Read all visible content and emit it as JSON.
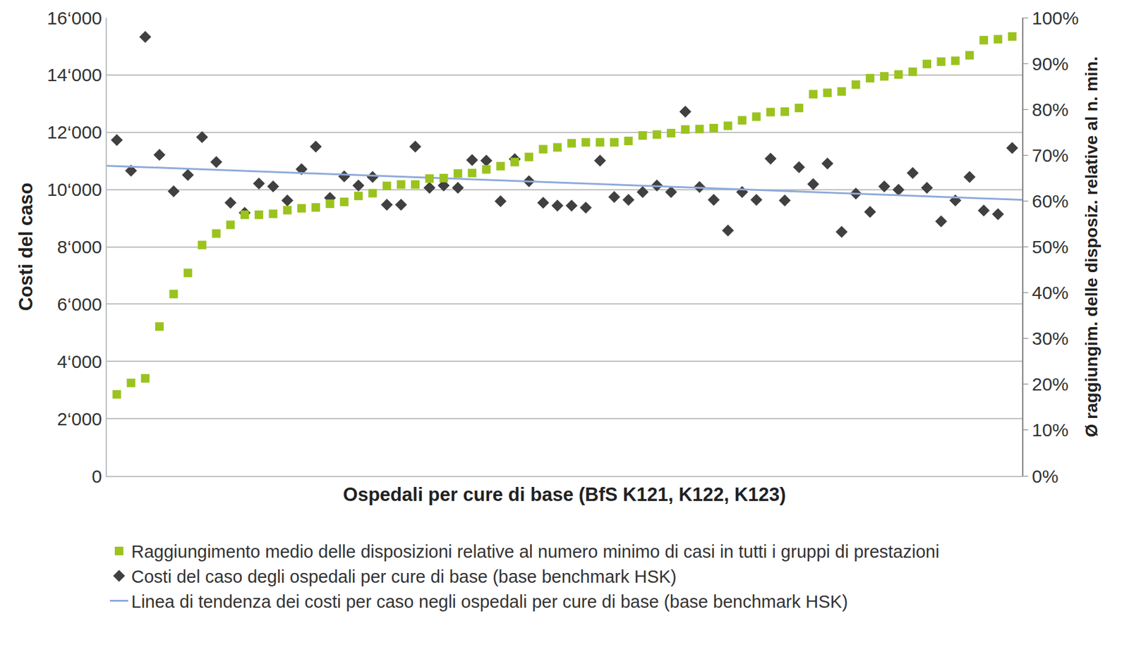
{
  "chart_data": {
    "type": "scatter",
    "x_label": "Ospedali per cure di base (BfS K121, K122, K123)",
    "y_label": "Costi del caso",
    "y2_label": "Ø raggiungim. delle disposiz. relative al n. min.",
    "x": [
      1,
      2,
      3,
      4,
      5,
      6,
      7,
      8,
      9,
      10,
      11,
      12,
      13,
      14,
      15,
      16,
      17,
      18,
      19,
      20,
      21,
      22,
      23,
      24,
      25,
      26,
      27,
      28,
      29,
      30,
      31,
      32,
      33,
      34,
      35,
      36,
      37,
      38,
      39,
      40,
      41,
      42,
      43,
      44,
      45,
      46,
      47,
      48,
      49,
      50,
      51,
      52,
      53,
      54,
      55,
      56,
      57,
      58,
      59,
      60,
      61,
      62,
      63,
      64
    ],
    "xlim": [
      0.3,
      64.7
    ],
    "xticks": [],
    "ylim": [
      0,
      16000
    ],
    "yticks": [
      0,
      {
        "value": 2000,
        "label": "2‘000"
      },
      {
        "value": 4000,
        "label": "4‘000"
      },
      {
        "value": 6000,
        "label": "6‘000"
      },
      {
        "value": 8000,
        "label": "8‘000"
      },
      {
        "value": 10000,
        "label": "10‘000"
      },
      {
        "value": 12000,
        "label": "12‘000"
      },
      {
        "value": 14000,
        "label": "14‘000"
      },
      {
        "value": 16000,
        "label": "16‘000"
      }
    ],
    "y2lim": [
      0,
      100
    ],
    "y2ticks": [
      {
        "value": 0,
        "label": "0%"
      },
      {
        "value": 10,
        "label": "10%"
      },
      {
        "value": 20,
        "label": "20%"
      },
      {
        "value": 30,
        "label": "30%"
      },
      {
        "value": 40,
        "label": "40%"
      },
      {
        "value": 50,
        "label": "50%"
      },
      {
        "value": 60,
        "label": "60%"
      },
      {
        "value": 70,
        "label": "70%"
      },
      {
        "value": 80,
        "label": "80%"
      },
      {
        "value": 90,
        "label": "90%"
      },
      {
        "value": 100,
        "label": "100%"
      }
    ],
    "grid": true,
    "legend": "bottom",
    "tick_labels": "y",
    "series": [
      {
        "name": "Raggiungimento medio delle disposizioni relative al numero minimo di casi in tutti i gruppi di prestazioni",
        "type": "scatter",
        "marker": "square",
        "color": "#9bc31e",
        "axis": "y2",
        "values": [
          17.8,
          20.3,
          21.3,
          32.6,
          39.7,
          44.3,
          50.4,
          52.9,
          54.8,
          57.0,
          57.0,
          57.2,
          58.0,
          58.4,
          58.6,
          59.4,
          59.8,
          61.1,
          61.7,
          63.3,
          63.6,
          63.6,
          64.9,
          65.0,
          66.0,
          66.1,
          66.9,
          67.6,
          68.5,
          69.6,
          71.3,
          71.7,
          72.6,
          72.8,
          72.8,
          72.8,
          73.1,
          74.3,
          74.5,
          74.8,
          75.6,
          75.7,
          75.9,
          76.4,
          77.6,
          78.4,
          79.4,
          79.5,
          80.3,
          83.3,
          83.6,
          83.9,
          85.4,
          86.8,
          87.2,
          87.6,
          88.2,
          89.9,
          90.4,
          90.6,
          91.8,
          95.1,
          95.3,
          95.9
        ]
      },
      {
        "name": "Costi del caso degli ospedali per cure di base (base benchmark HSK)",
        "type": "scatter",
        "marker": "diamond",
        "color": "#404040",
        "values": [
          11730,
          10660,
          15330,
          11210,
          9940,
          10510,
          11830,
          10960,
          9540,
          9190,
          10210,
          10110,
          9620,
          10710,
          11500,
          9710,
          10460,
          10140,
          10440,
          9470,
          9470,
          11500,
          10060,
          10140,
          10060,
          11030,
          11010,
          9590,
          11060,
          10290,
          9540,
          9440,
          9440,
          9370,
          11010,
          9740,
          9640,
          9910,
          10140,
          9910,
          12720,
          10090,
          9640,
          8570,
          9910,
          9640,
          11080,
          9620,
          10780,
          10190,
          10910,
          8520,
          9860,
          9220,
          10110,
          9990,
          10580,
          10060,
          8890,
          9620,
          10440,
          9270,
          9140,
          11450
        ]
      },
      {
        "name": "Linea di tendenza dei costi per caso negli ospedali per cure di base (base benchmark HSK)",
        "type": "line",
        "line_style": "solid",
        "color": "#8eaadb",
        "x": [
          0.3,
          64.7
        ],
        "values": [
          10830,
          9640
        ]
      }
    ]
  }
}
